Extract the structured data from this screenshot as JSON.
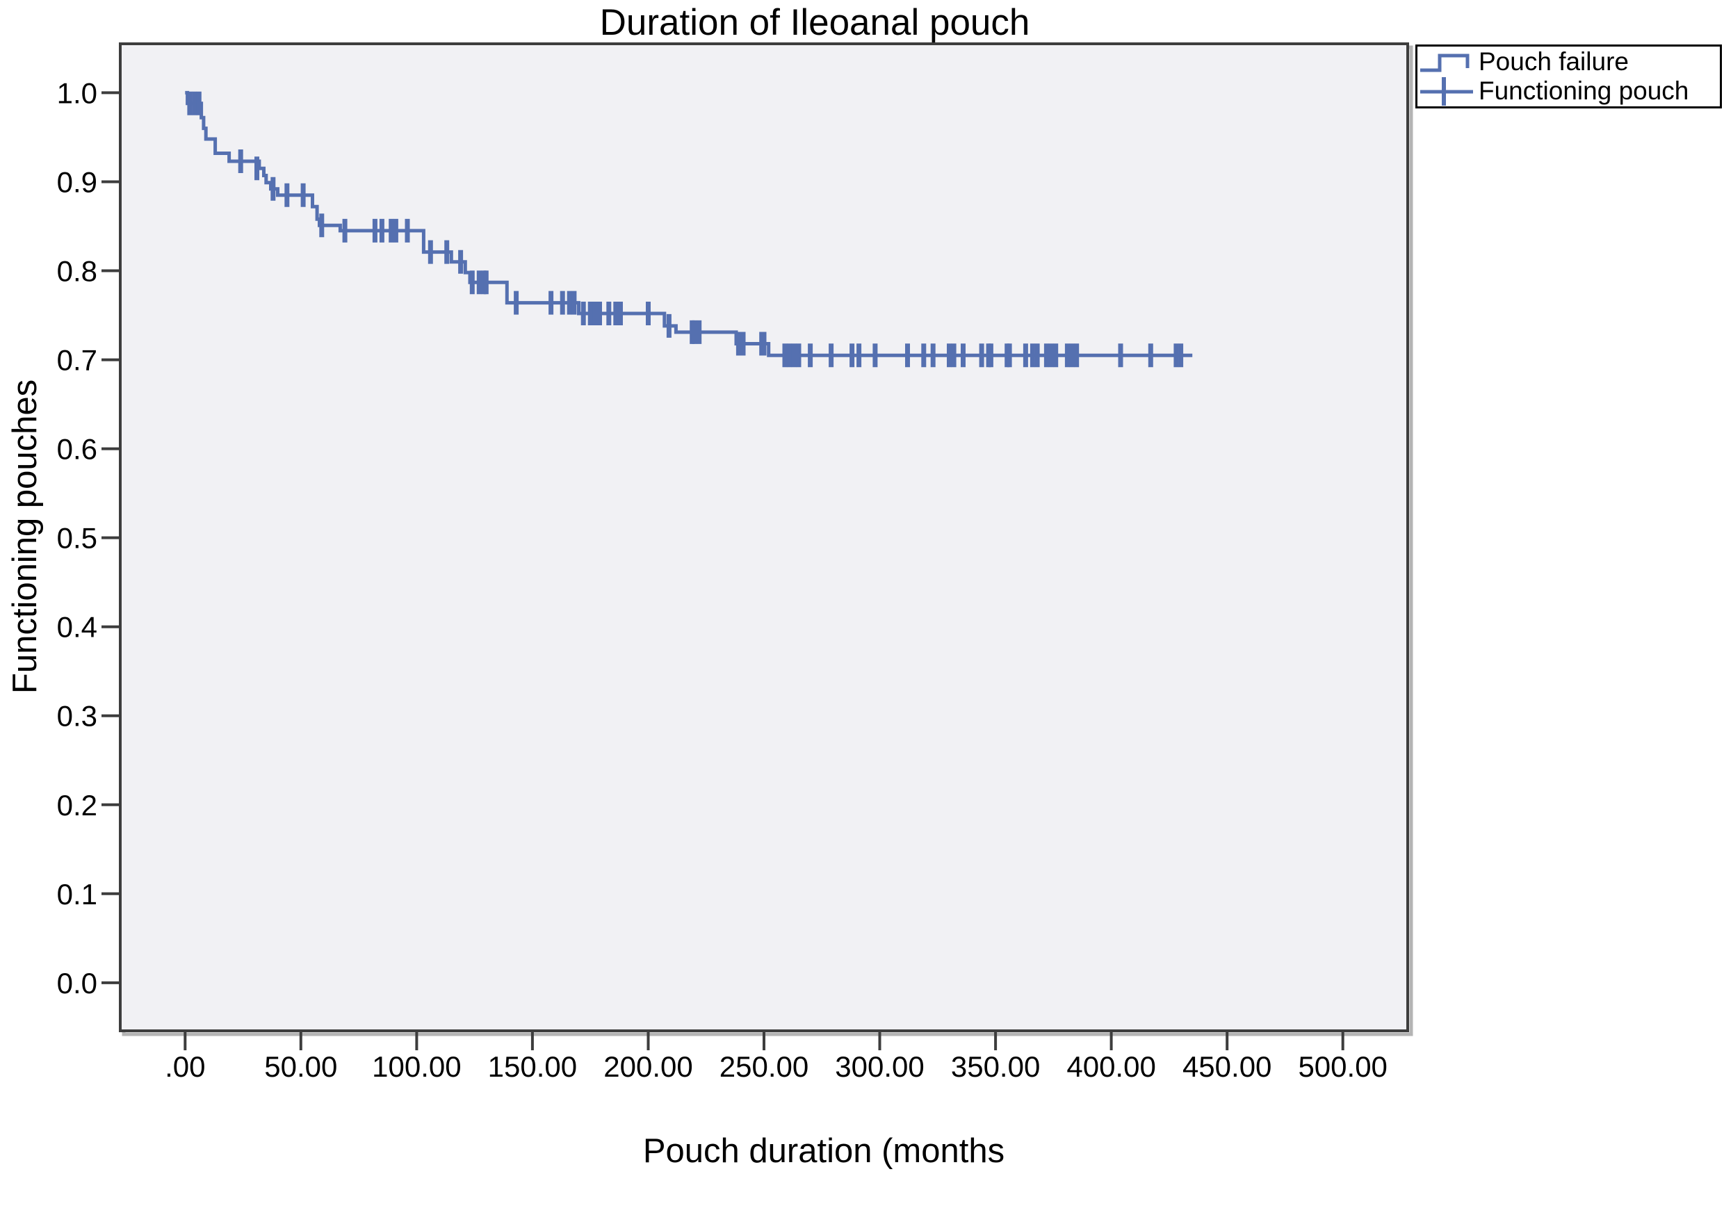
{
  "chart_data": {
    "type": "line",
    "subtype": "kaplan-meier-step",
    "title": "Duration of Ileoanal pouch",
    "xlabel": "Pouch duration (months",
    "ylabel": "Functioning pouches",
    "grid": false,
    "plot_background": "#f1f1f4",
    "frame_color": "#3d3d3d",
    "curve_color": "#5570b0",
    "xlim": [
      -28,
      528
    ],
    "ylim": [
      -0.054,
      1.055
    ],
    "x_ticks": {
      "values": [
        0,
        50,
        100,
        150,
        200,
        250,
        300,
        350,
        400,
        450,
        500
      ],
      "labels": [
        ".00",
        "50.00",
        "100.00",
        "150.00",
        "200.00",
        "250.00",
        "300.00",
        "350.00",
        "400.00",
        "450.00",
        "500.00"
      ]
    },
    "y_ticks": {
      "values": [
        0.0,
        0.1,
        0.2,
        0.3,
        0.4,
        0.5,
        0.6,
        0.7,
        0.8,
        0.9,
        1.0
      ],
      "labels": [
        "0.0",
        "0.1",
        "0.2",
        "0.3",
        "0.4",
        "0.5",
        "0.6",
        "0.7",
        "0.8",
        "0.9",
        "1.0"
      ]
    },
    "legend": {
      "position": "top-right",
      "entries": [
        {
          "label": "Pouch failure",
          "marker": "step-line",
          "color": "#5570b0"
        },
        {
          "label": "Functioning pouch",
          "marker": "plus",
          "color": "#5570b0"
        }
      ]
    },
    "series": [
      {
        "name": "Pouch failure",
        "color": "#5570b0",
        "step_points": [
          [
            0,
            1.0
          ],
          [
            1,
            0.988
          ],
          [
            7,
            0.972
          ],
          [
            8,
            0.96
          ],
          [
            9,
            0.948
          ],
          [
            13,
            0.932
          ],
          [
            19,
            0.923
          ],
          [
            32,
            0.915
          ],
          [
            34,
            0.907
          ],
          [
            35,
            0.899
          ],
          [
            37,
            0.892
          ],
          [
            40,
            0.885
          ],
          [
            55,
            0.872
          ],
          [
            57,
            0.858
          ],
          [
            58,
            0.851
          ],
          [
            67,
            0.845
          ],
          [
            103,
            0.821
          ],
          [
            115,
            0.81
          ],
          [
            121,
            0.798
          ],
          [
            123,
            0.787
          ],
          [
            139,
            0.764
          ],
          [
            170,
            0.752
          ],
          [
            207,
            0.738
          ],
          [
            212,
            0.731
          ],
          [
            238,
            0.718
          ],
          [
            252,
            0.705
          ]
        ],
        "end_time": 435
      }
    ],
    "censor_marks": {
      "name": "Functioning pouch",
      "color": "#5570b0",
      "points": [
        [
          2,
          0.988
        ],
        [
          4,
          0.988
        ],
        [
          6,
          0.988
        ],
        [
          24,
          0.923
        ],
        [
          31,
          0.915
        ],
        [
          38,
          0.892
        ],
        [
          44,
          0.885
        ],
        [
          51,
          0.885
        ],
        [
          59,
          0.851
        ],
        [
          69,
          0.845
        ],
        [
          82,
          0.845
        ],
        [
          85,
          0.845
        ],
        [
          89,
          0.845
        ],
        [
          91,
          0.845
        ],
        [
          96,
          0.845
        ],
        [
          106,
          0.821
        ],
        [
          113,
          0.821
        ],
        [
          119,
          0.81
        ],
        [
          124,
          0.787
        ],
        [
          127,
          0.787
        ],
        [
          129,
          0.787
        ],
        [
          130,
          0.787
        ],
        [
          143,
          0.764
        ],
        [
          158,
          0.764
        ],
        [
          163,
          0.764
        ],
        [
          166,
          0.764
        ],
        [
          168,
          0.764
        ],
        [
          172,
          0.752
        ],
        [
          175,
          0.752
        ],
        [
          177,
          0.752
        ],
        [
          179,
          0.752
        ],
        [
          183,
          0.752
        ],
        [
          186,
          0.752
        ],
        [
          188,
          0.752
        ],
        [
          200,
          0.752
        ],
        [
          209,
          0.738
        ],
        [
          219,
          0.731
        ],
        [
          220,
          0.731
        ],
        [
          222,
          0.731
        ],
        [
          239,
          0.718
        ],
        [
          241,
          0.718
        ],
        [
          249,
          0.718
        ],
        [
          250,
          0.718
        ],
        [
          259,
          0.705
        ],
        [
          261,
          0.705
        ],
        [
          263,
          0.705
        ],
        [
          265,
          0.705
        ],
        [
          270,
          0.705
        ],
        [
          279,
          0.705
        ],
        [
          288,
          0.705
        ],
        [
          291,
          0.705
        ],
        [
          298,
          0.705
        ],
        [
          312,
          0.705
        ],
        [
          319,
          0.705
        ],
        [
          323,
          0.705
        ],
        [
          330,
          0.705
        ],
        [
          332,
          0.705
        ],
        [
          336,
          0.705
        ],
        [
          344,
          0.705
        ],
        [
          347,
          0.705
        ],
        [
          348,
          0.705
        ],
        [
          355,
          0.705
        ],
        [
          356,
          0.705
        ],
        [
          363,
          0.705
        ],
        [
          366,
          0.705
        ],
        [
          368,
          0.705
        ],
        [
          372,
          0.705
        ],
        [
          374,
          0.705
        ],
        [
          376,
          0.705
        ],
        [
          381,
          0.705
        ],
        [
          383,
          0.705
        ],
        [
          385,
          0.705
        ],
        [
          404,
          0.705
        ],
        [
          417,
          0.705
        ],
        [
          428,
          0.705
        ],
        [
          430,
          0.705
        ]
      ]
    }
  }
}
